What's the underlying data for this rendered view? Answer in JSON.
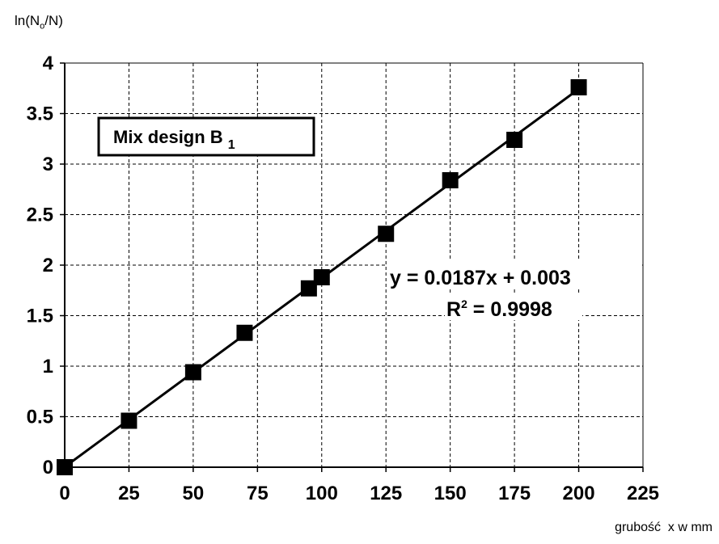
{
  "chart_data": {
    "type": "scatter",
    "ylabel": "ln(N",
    "ylabel_sub": "o",
    "ylabel_end": "/N)",
    "xlabel": "grubość  x w mm",
    "legend_box": {
      "text": "Mix design B",
      "subscript": "1"
    },
    "equation": {
      "line1": "y = 0.0187x + 0.003",
      "r2_prefix": "R",
      "r2_sup": "2",
      "r2_suffix": " = 0.9998"
    },
    "xlim": [
      0,
      225
    ],
    "ylim": [
      0,
      4
    ],
    "x_ticks": [
      0,
      25,
      50,
      75,
      100,
      125,
      150,
      175,
      200,
      225
    ],
    "x_tick_labels": [
      "0",
      "25",
      "50",
      "75",
      "100",
      "125",
      "150",
      "175",
      "200",
      "225"
    ],
    "y_ticks": [
      0,
      0.5,
      1,
      1.5,
      2,
      2.5,
      3,
      3.5,
      4
    ],
    "y_tick_labels": [
      "0",
      "0.5",
      "1",
      "1.5",
      "2",
      "2.5",
      "3",
      "3.5",
      "4"
    ],
    "grid": true,
    "series": [
      {
        "points": [
          [
            0,
            0
          ],
          [
            25,
            0.46
          ],
          [
            50,
            0.94
          ],
          [
            70,
            1.33
          ],
          [
            95,
            1.77
          ],
          [
            100,
            1.88
          ],
          [
            125,
            2.31
          ],
          [
            150,
            2.84
          ],
          [
            175,
            3.24
          ],
          [
            200,
            3.76
          ]
        ]
      }
    ],
    "trendline": {
      "slope": 0.0187,
      "intercept": 0.003,
      "x_range": [
        0,
        200
      ]
    },
    "colors": {
      "marker": "#000000",
      "line": "#000000",
      "grid": "#000000"
    }
  }
}
